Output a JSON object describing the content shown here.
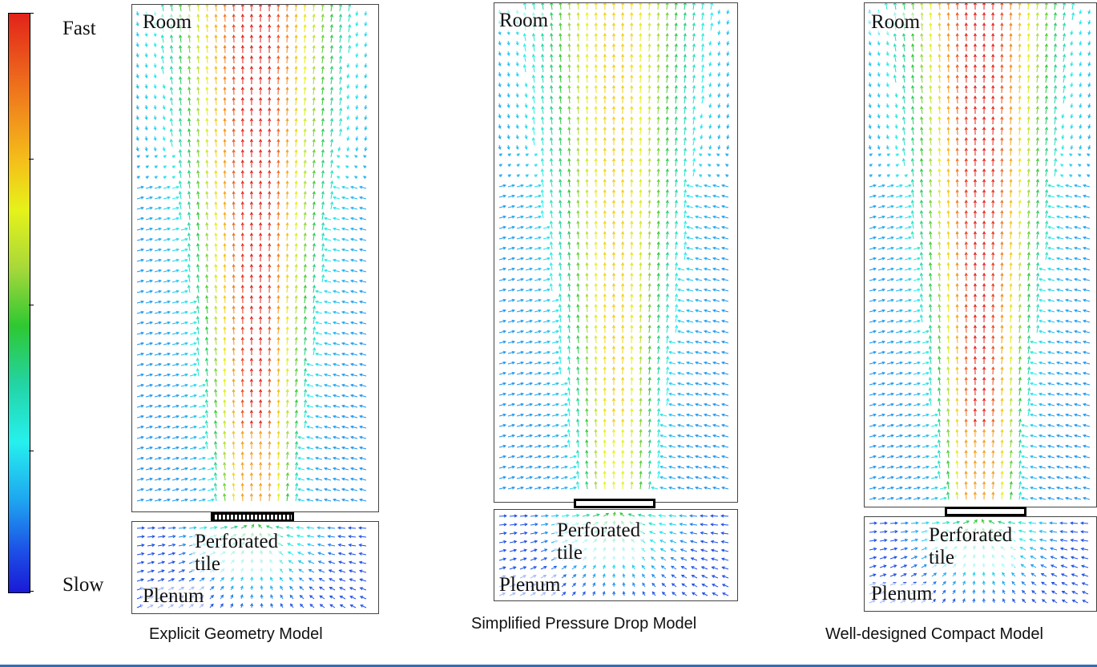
{
  "legend": {
    "top_label": "Fast",
    "bottom_label": "Slow",
    "gradient_colors": [
      "#e2231a",
      "#f07a1c",
      "#f4c21a",
      "#e6f21a",
      "#a7d83a",
      "#2ec832",
      "#23d4a4",
      "#26f0ee",
      "#1ea6f0",
      "#1c4ee6",
      "#1a1ad6"
    ]
  },
  "panels": [
    {
      "room_label": "Room",
      "plenum_label": "Plenum",
      "tile_label": "Perforated tile",
      "caption": "Explicit Geometry Model",
      "peak_speed": 1.0
    },
    {
      "room_label": "Room",
      "plenum_label": "Plenum",
      "tile_label": "Perforated tile",
      "caption": "Simplified Pressure Drop Model",
      "peak_speed": 0.5
    },
    {
      "room_label": "Room",
      "plenum_label": "Plenum",
      "tile_label": "Perforated tile",
      "caption": "Well-designed Compact Model",
      "peak_speed": 1.0
    }
  ]
}
